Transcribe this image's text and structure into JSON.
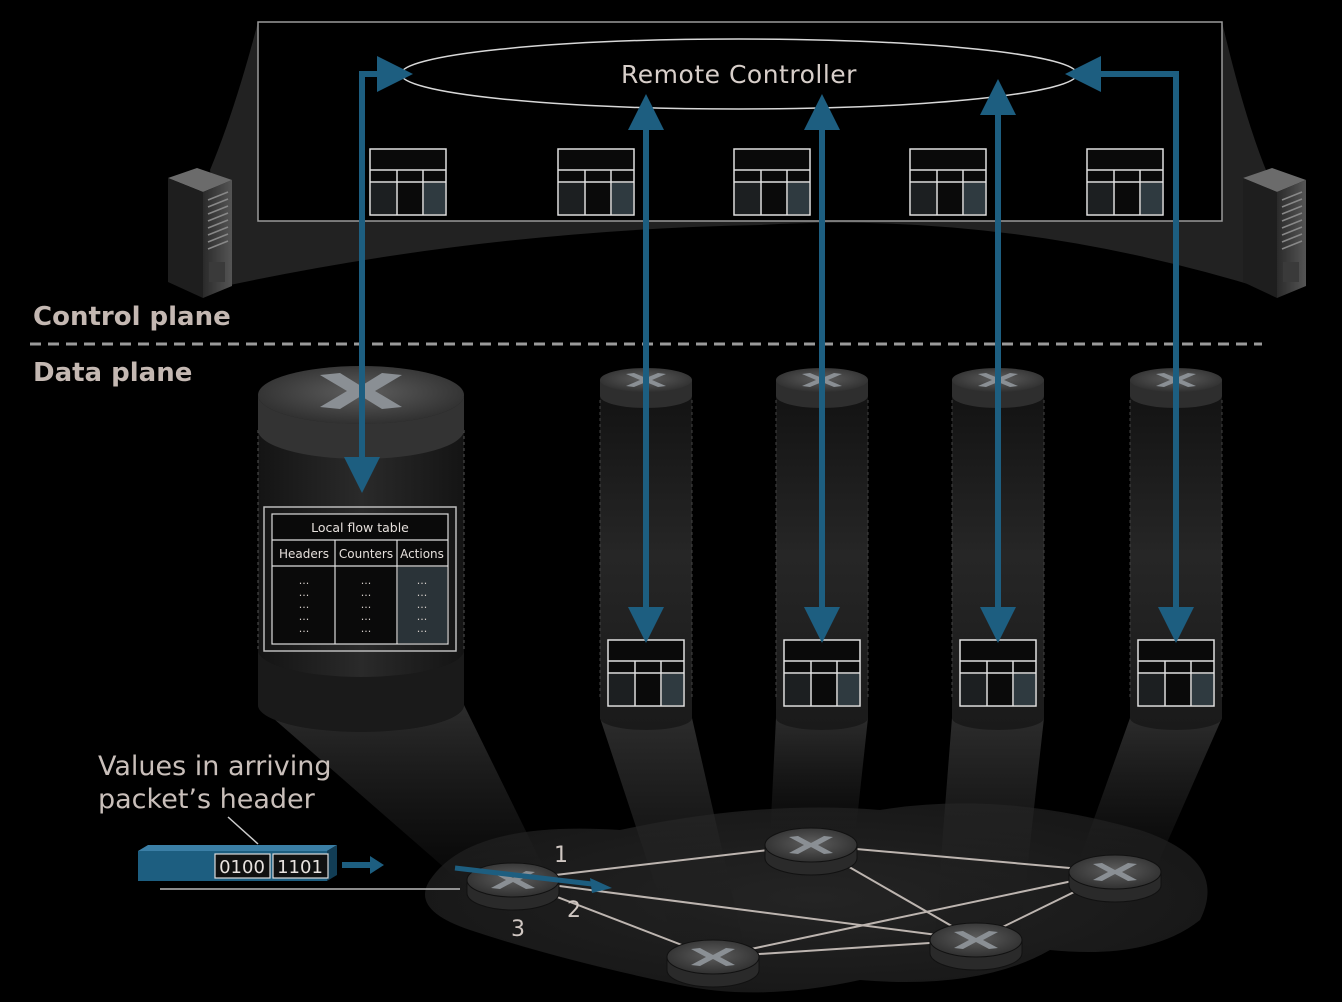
{
  "control_plane_label": "Control plane",
  "data_plane_label": "Data plane",
  "remote_controller_label": "Remote Controller",
  "flow_table": {
    "title": "Local flow table",
    "columns": [
      "Headers",
      "Counters",
      "Actions"
    ],
    "cells": [
      "...",
      "...",
      "...",
      "...",
      "..."
    ]
  },
  "packet": {
    "caption_line1": "Values in arriving",
    "caption_line2": "packet’s header",
    "bits1": "0100",
    "bits2": "1101"
  },
  "ports": {
    "p1": "1",
    "p2": "2",
    "p3": "3"
  },
  "colors": {
    "accent": "#1d5e80",
    "label": "#c4b8b2",
    "line": "#bdb5b0",
    "controller_box": "#000000"
  }
}
